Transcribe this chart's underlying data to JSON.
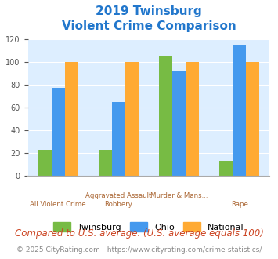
{
  "title_line1": "2019 Twinsburg",
  "title_line2": "Violent Crime Comparison",
  "categories": [
    "All Violent Crime",
    "Aggravated Assault\nRobbery",
    "Murder & Mans...\n",
    "Rape"
  ],
  "cat_top": [
    "",
    "Aggravated Assault",
    "Murder & Mans...",
    ""
  ],
  "cat_bottom": [
    "All Violent Crime",
    "Robbery",
    "",
    "Rape"
  ],
  "twinsburg": [
    23,
    23,
    105,
    13
  ],
  "ohio": [
    77,
    65,
    92,
    115
  ],
  "national": [
    100,
    100,
    100,
    100
  ],
  "color_twinsburg": "#77bb44",
  "color_ohio": "#4499ee",
  "color_national": "#ffaa33",
  "ylim": [
    0,
    120
  ],
  "yticks": [
    0,
    20,
    40,
    60,
    80,
    100,
    120
  ],
  "bg_color": "#ddeeff",
  "title_color": "#2277cc",
  "xlabel_color": "#aa6633",
  "note_text": "Compared to U.S. average. (U.S. average equals 100)",
  "note_color": "#cc4422",
  "footer_text": "© 2025 CityRating.com - https://www.cityrating.com/crime-statistics/",
  "footer_color": "#888888",
  "legend_labels": [
    "Twinsburg",
    "Ohio",
    "National"
  ],
  "title_fontsize": 11,
  "note_fontsize": 8.5,
  "footer_fontsize": 6.5
}
